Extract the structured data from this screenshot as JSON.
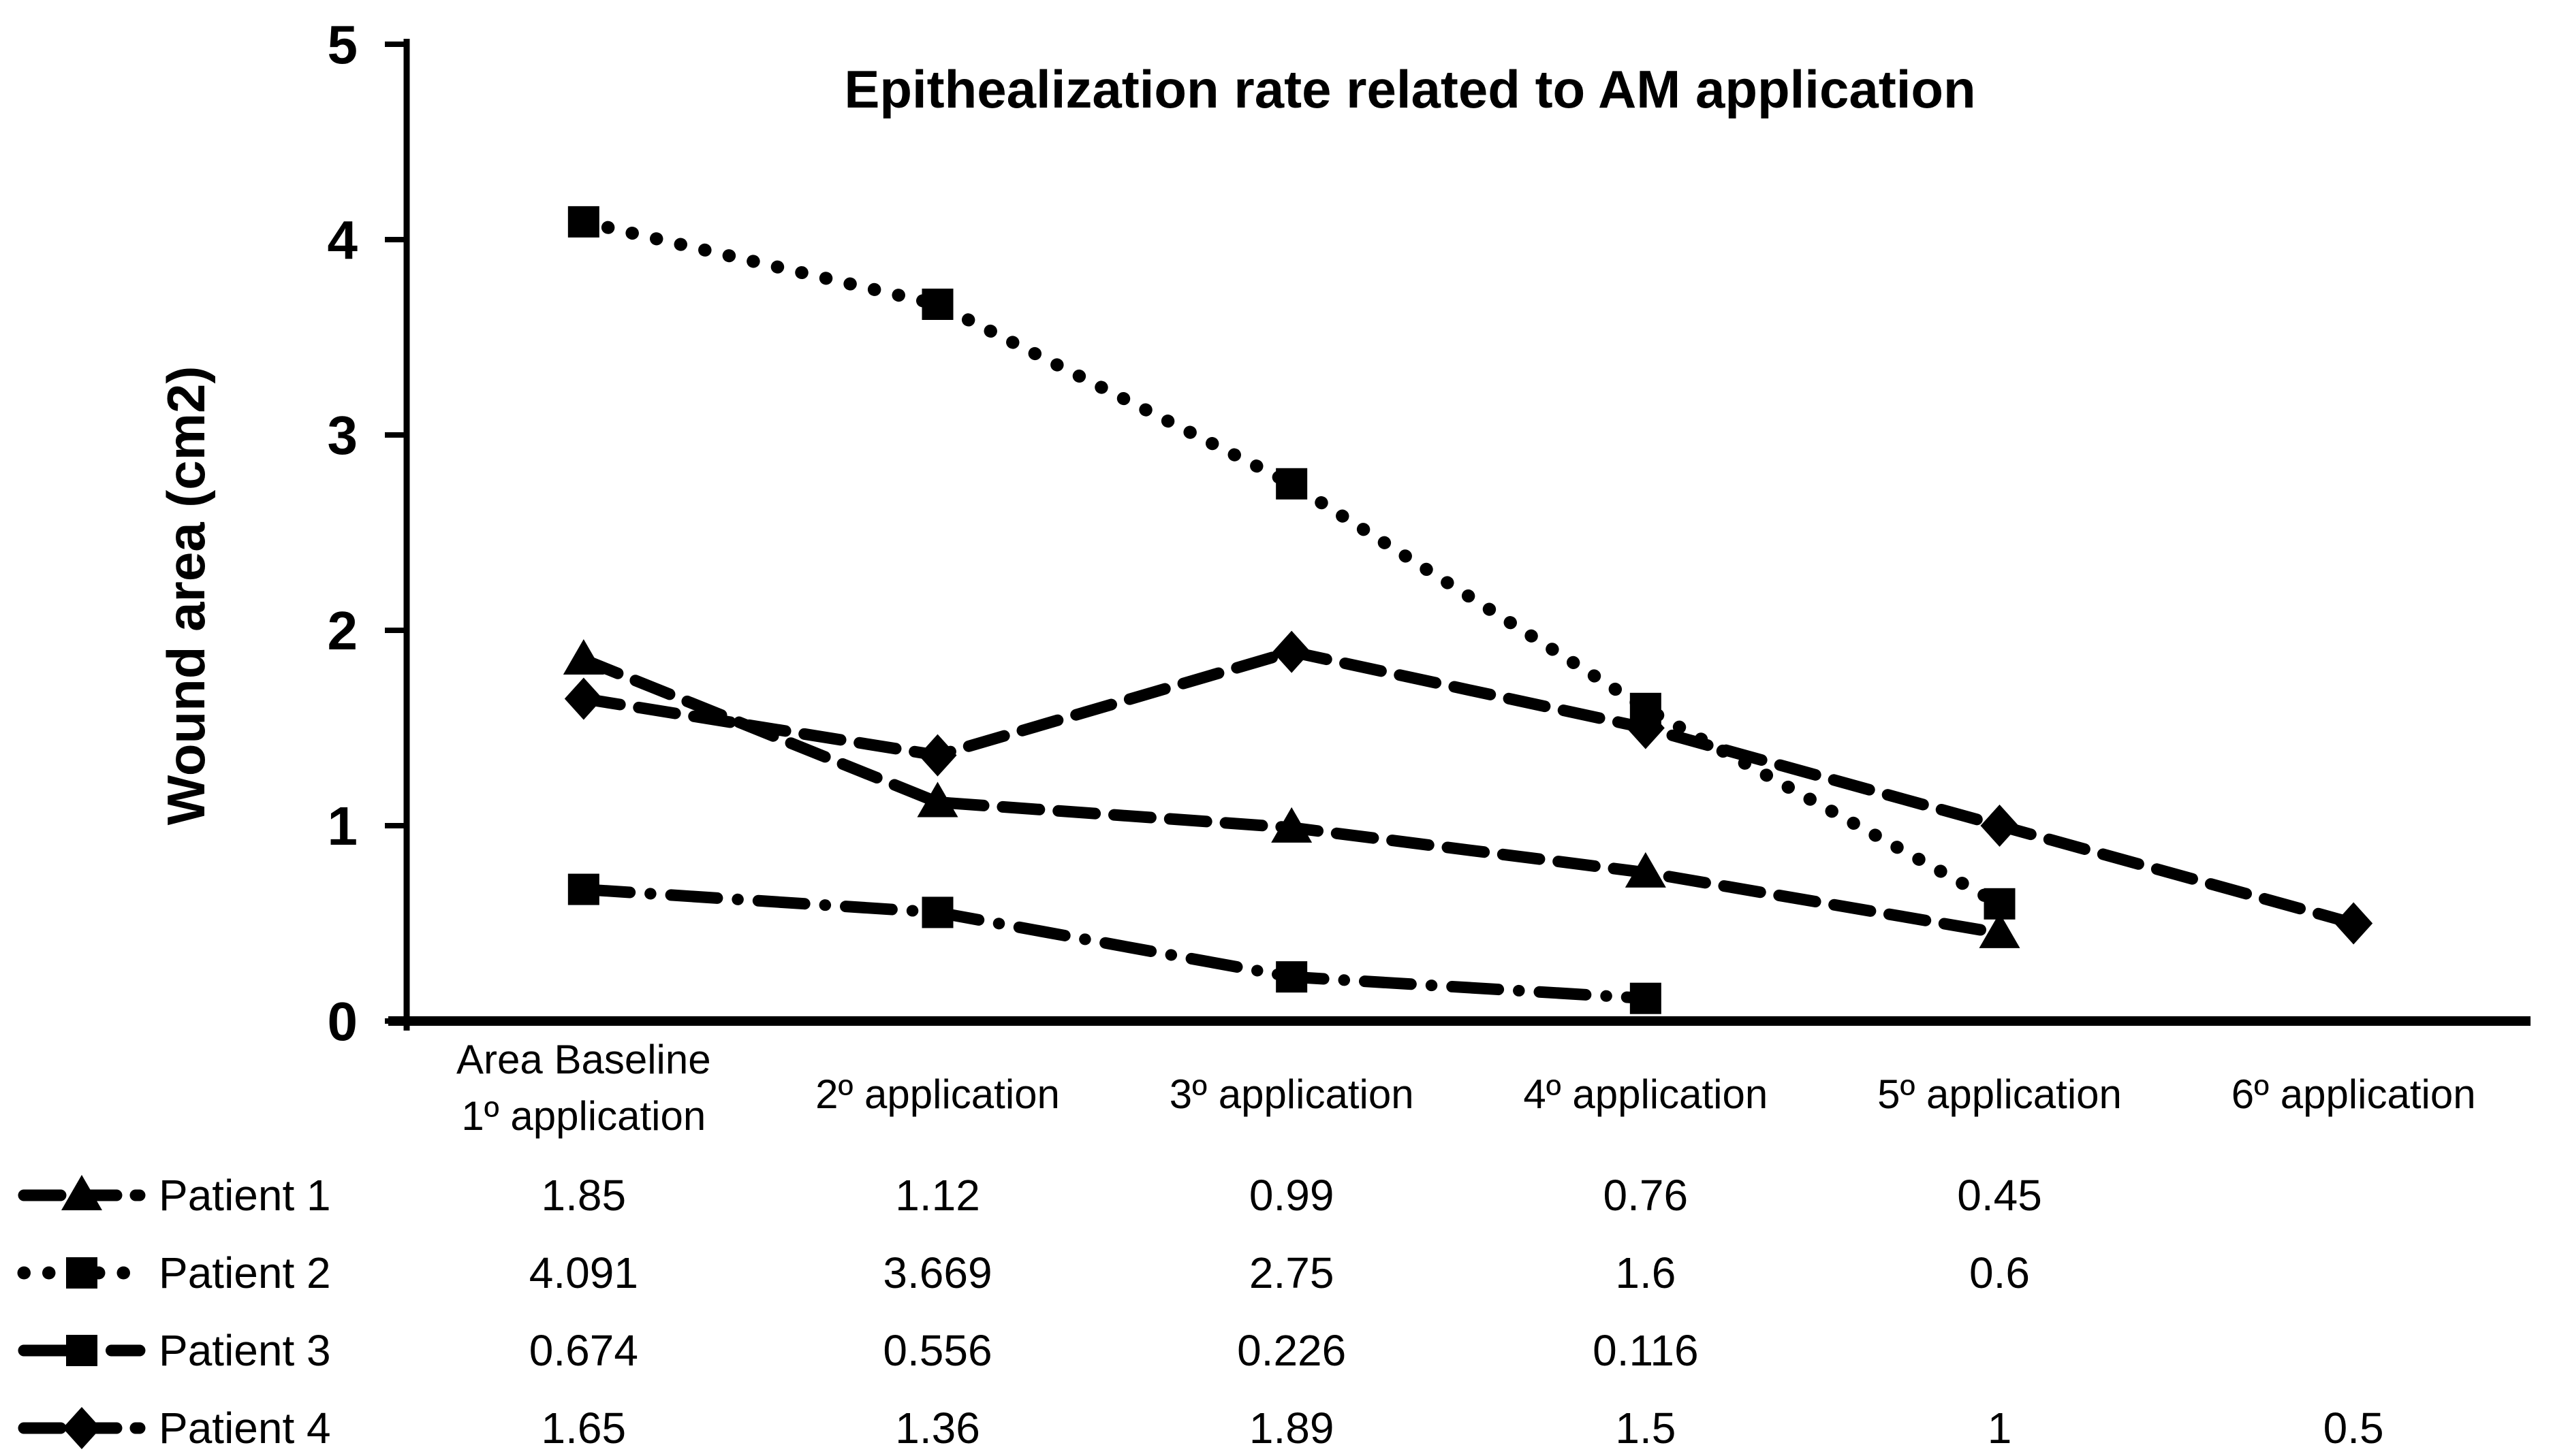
{
  "figure": {
    "background_color": "#ffffff",
    "foreground_color": "#000000"
  },
  "chart_data": {
    "type": "line",
    "title": "Epithealization rate related to AM application",
    "xlabel": "",
    "ylabel": "Wound area (cm2)",
    "ylim": [
      0,
      5
    ],
    "y_ticks": [
      0,
      1,
      2,
      3,
      4,
      5
    ],
    "grid": false,
    "legend_position": "bottom-left-of-data-table",
    "categories": [
      [
        "Area Baseline",
        "1º application"
      ],
      [
        "2º application"
      ],
      [
        "3º application"
      ],
      [
        "4º application"
      ],
      [
        "5º application"
      ],
      [
        "6º application"
      ]
    ],
    "series": [
      {
        "name": "Patient 1",
        "color": "#000000",
        "marker": "triangle",
        "line_style": "dashed",
        "values": [
          1.85,
          1.12,
          0.99,
          0.76,
          0.45,
          null
        ]
      },
      {
        "name": "Patient 2",
        "color": "#000000",
        "marker": "square",
        "line_style": "dotted",
        "values": [
          4.091,
          3.669,
          2.75,
          1.6,
          0.6,
          null
        ]
      },
      {
        "name": "Patient 3",
        "color": "#000000",
        "marker": "square",
        "line_style": "dash-dot",
        "values": [
          0.674,
          0.556,
          0.226,
          0.116,
          null,
          null
        ]
      },
      {
        "name": "Patient 4",
        "color": "#000000",
        "marker": "diamond",
        "line_style": "dashed",
        "values": [
          1.65,
          1.36,
          1.89,
          1.5,
          1,
          0.5
        ]
      }
    ]
  }
}
